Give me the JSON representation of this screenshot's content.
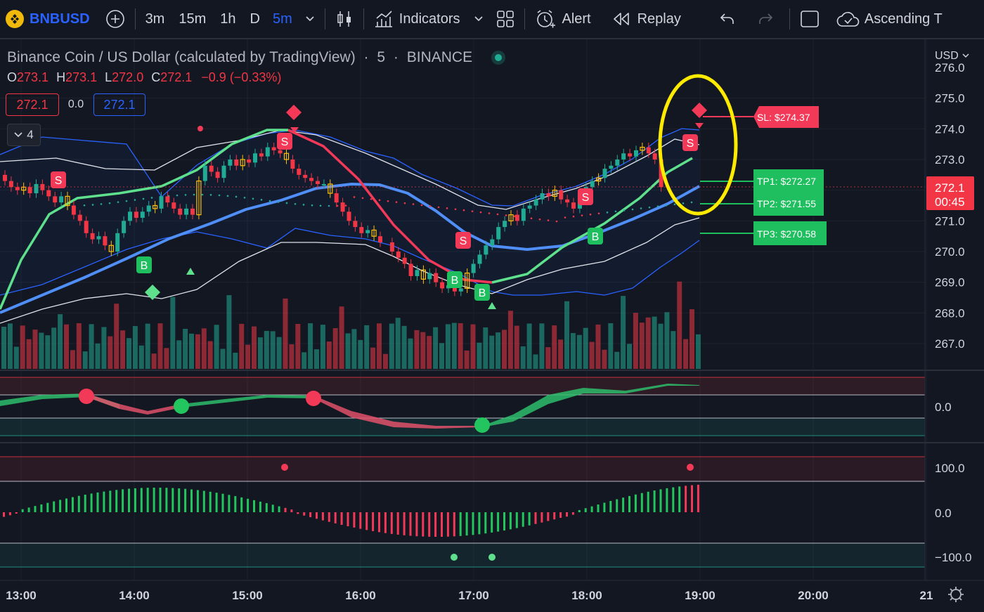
{
  "toolbar": {
    "symbol": "BNBUSD",
    "intervals": [
      "3m",
      "15m",
      "1h",
      "D",
      "5m"
    ],
    "indicators_label": "Indicators",
    "alert_label": "Alert",
    "replay_label": "Replay",
    "layout_label": "Ascending T"
  },
  "header": {
    "title": "Binance Coin / US Dollar (calculated by TradingView)",
    "interval": "5",
    "exchange": "BINANCE",
    "open_label": "O",
    "open": "273.1",
    "high_label": "H",
    "high": "273.1",
    "low_label": "L",
    "low": "272.0",
    "close_label": "C",
    "close": "272.1",
    "change": "−0.9 (−0.33%)",
    "sell_price": "272.1",
    "spread": "0.0",
    "buy_price": "272.1",
    "collapse_count": "4"
  },
  "price_axis": {
    "currency": "USD",
    "labels": [
      "276.0",
      "275.0",
      "274.0",
      "273.0",
      "272.0",
      "271.0",
      "270.0",
      "269.0",
      "268.0",
      "267.0"
    ],
    "current_price": "272.1",
    "countdown": "00:45"
  },
  "oscillator_axis": {
    "label": "0.0"
  },
  "histogram_axis": {
    "labels": [
      "100.0",
      "0.0",
      "−100.0"
    ]
  },
  "time_axis": {
    "labels": [
      "13:00",
      "14:00",
      "15:00",
      "16:00",
      "17:00",
      "18:00",
      "19:00",
      "20:00",
      "21"
    ]
  },
  "trade_labels": {
    "sl": "SL: $274.37",
    "tp1": "TP1: $272.27",
    "tp2": "TP2: $271.55",
    "tp3": "TP3: $270.58"
  },
  "signal_letters": {
    "buy": "B",
    "sell": "S"
  },
  "colors": {
    "bg": "#131722",
    "up": "#22ab94",
    "down": "#f23645",
    "accent": "#2962ff",
    "highlight": "#ffeb00",
    "tp": "#1fbf5f",
    "sl": "#f23a58"
  }
}
